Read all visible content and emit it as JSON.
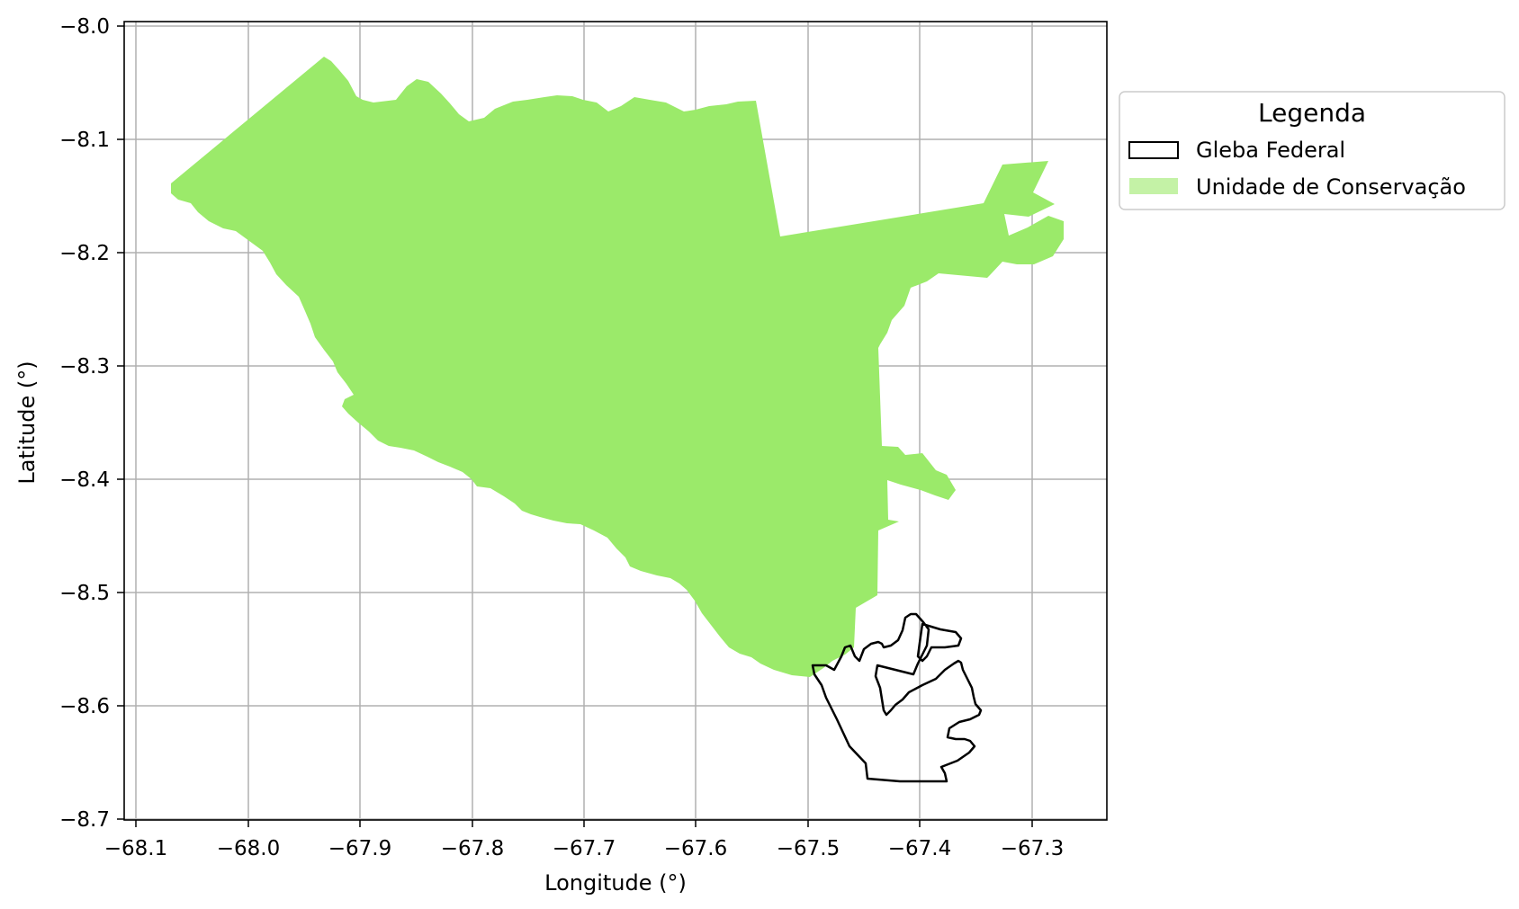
{
  "map": {
    "xlabel": "Longitude (°)",
    "ylabel": "Latitude (°)",
    "x_ticks": [
      "−68.1",
      "−68.0",
      "−67.9",
      "−67.8",
      "−67.7",
      "−67.6",
      "−67.5",
      "−67.4",
      "−67.3"
    ],
    "y_ticks": [
      "−8.0",
      "−8.1",
      "−8.2",
      "−8.3",
      "−8.4",
      "−8.5",
      "−8.6",
      "−8.7"
    ],
    "xlim": [
      -68.11,
      -67.23
    ],
    "ylim": [
      -8.702,
      -7.998
    ],
    "grid": true,
    "legend": {
      "title": "Legenda",
      "placement": "outside-upper-right",
      "items": [
        {
          "label": "Gleba Federal",
          "color": "#000000",
          "style": "outline"
        },
        {
          "label": "Unidade de Conservação",
          "color": "#9bea6a",
          "style": "filled"
        }
      ]
    },
    "colors": {
      "conservation_unit_fill": "#9bea6a",
      "gleba_outline": "#000000",
      "grid": "#b0b0b0"
    }
  }
}
